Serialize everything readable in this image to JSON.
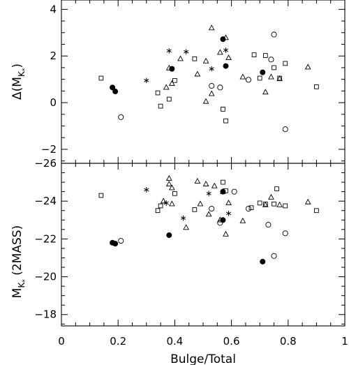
{
  "chart_data": [
    {
      "id": "top",
      "type": "scatter",
      "ylabel_main": "Δ(M",
      "ylabel_sub": "K",
      "ylabel_subsub": "*",
      "ylabel_close": ")",
      "xlim": [
        0,
        1
      ],
      "ylim": [
        -2.6,
        4.4
      ],
      "x_ticks": [
        0,
        0.2,
        0.4,
        0.6,
        0.8,
        1
      ],
      "y_ticks": [
        -2,
        0,
        2,
        4
      ],
      "y_tick_labels": [
        "−2",
        "0",
        "2",
        "4"
      ],
      "grid": false,
      "markers": {
        "filled_circle": [
          [
            0.18,
            0.65
          ],
          [
            0.19,
            0.48
          ],
          [
            0.39,
            1.45
          ],
          [
            0.57,
            2.72
          ],
          [
            0.58,
            1.57
          ],
          [
            0.71,
            1.3
          ]
        ],
        "open_circle": [
          [
            0.21,
            -0.62
          ],
          [
            0.53,
            0.72
          ],
          [
            0.56,
            0.65
          ],
          [
            0.66,
            0.98
          ],
          [
            0.74,
            1.85
          ],
          [
            0.75,
            2.92
          ],
          [
            0.79,
            -1.14
          ]
        ],
        "triangle": [
          [
            0.37,
            0.65
          ],
          [
            0.38,
            1.48
          ],
          [
            0.39,
            0.82
          ],
          [
            0.42,
            1.88
          ],
          [
            0.48,
            1.22
          ],
          [
            0.51,
            0.05
          ],
          [
            0.51,
            1.78
          ],
          [
            0.53,
            3.2
          ],
          [
            0.53,
            0.38
          ],
          [
            0.56,
            2.15
          ],
          [
            0.58,
            2.78
          ],
          [
            0.59,
            1.92
          ],
          [
            0.64,
            1.1
          ],
          [
            0.72,
            0.45
          ],
          [
            0.74,
            1.1
          ],
          [
            0.77,
            1.02
          ],
          [
            0.87,
            1.52
          ]
        ],
        "square": [
          [
            0.14,
            1.05
          ],
          [
            0.34,
            0.42
          ],
          [
            0.35,
            -0.15
          ],
          [
            0.38,
            0.15
          ],
          [
            0.4,
            0.95
          ],
          [
            0.47,
            1.88
          ],
          [
            0.57,
            -0.28
          ],
          [
            0.58,
            -0.78
          ],
          [
            0.68,
            2.05
          ],
          [
            0.7,
            1.05
          ],
          [
            0.72,
            2.02
          ],
          [
            0.75,
            1.5
          ],
          [
            0.77,
            1.05
          ],
          [
            0.79,
            1.68
          ],
          [
            0.9,
            0.68
          ]
        ],
        "asterisk": [
          [
            0.3,
            0.95
          ],
          [
            0.38,
            2.22
          ],
          [
            0.44,
            2.18
          ],
          [
            0.53,
            1.45
          ],
          [
            0.58,
            2.25
          ]
        ]
      }
    },
    {
      "id": "bottom",
      "type": "scatter",
      "ylabel_main": "M",
      "ylabel_sub": "K",
      "ylabel_subsub": "*",
      "ylabel_rest": " (2MASS)",
      "xlabel": "Bulge/Total",
      "xlim": [
        0,
        1
      ],
      "ylim": [
        -17.4,
        -26
      ],
      "x_ticks": [
        0,
        0.2,
        0.4,
        0.6,
        0.8,
        1
      ],
      "x_tick_labels": [
        "0",
        "0.2",
        "0.4",
        "0.6",
        "0.8",
        "1"
      ],
      "y_ticks": [
        -18,
        -20,
        -22,
        -24,
        -26
      ],
      "y_tick_labels": [
        "−18",
        "−20",
        "−22",
        "−24",
        "−26"
      ],
      "grid": false,
      "markers": {
        "filled_circle": [
          [
            0.18,
            -21.8
          ],
          [
            0.19,
            -21.75
          ],
          [
            0.38,
            -22.2
          ],
          [
            0.57,
            -23.0
          ],
          [
            0.57,
            -24.5
          ],
          [
            0.71,
            -20.8
          ]
        ],
        "open_circle": [
          [
            0.21,
            -21.9
          ],
          [
            0.53,
            -23.6
          ],
          [
            0.56,
            -22.85
          ],
          [
            0.61,
            -24.5
          ],
          [
            0.66,
            -23.6
          ],
          [
            0.73,
            -22.75
          ],
          [
            0.75,
            -21.1
          ],
          [
            0.79,
            -22.3
          ]
        ],
        "triangle": [
          [
            0.36,
            -24.0
          ],
          [
            0.38,
            -25.2
          ],
          [
            0.38,
            -24.9
          ],
          [
            0.39,
            -24.7
          ],
          [
            0.39,
            -23.85
          ],
          [
            0.44,
            -22.6
          ],
          [
            0.48,
            -25.05
          ],
          [
            0.49,
            -23.85
          ],
          [
            0.51,
            -24.9
          ],
          [
            0.52,
            -23.3
          ],
          [
            0.54,
            -24.8
          ],
          [
            0.56,
            -23.0
          ],
          [
            0.57,
            -24.5
          ],
          [
            0.58,
            -22.25
          ],
          [
            0.59,
            -23.9
          ],
          [
            0.64,
            -22.95
          ],
          [
            0.72,
            -23.8
          ],
          [
            0.74,
            -24.2
          ],
          [
            0.77,
            -23.8
          ],
          [
            0.87,
            -23.95
          ]
        ],
        "square": [
          [
            0.14,
            -24.3
          ],
          [
            0.34,
            -23.5
          ],
          [
            0.35,
            -23.75
          ],
          [
            0.4,
            -24.4
          ],
          [
            0.47,
            -23.55
          ],
          [
            0.57,
            -25.0
          ],
          [
            0.58,
            -24.55
          ],
          [
            0.67,
            -23.65
          ],
          [
            0.7,
            -23.9
          ],
          [
            0.72,
            -23.85
          ],
          [
            0.75,
            -23.85
          ],
          [
            0.76,
            -24.65
          ],
          [
            0.79,
            -23.75
          ],
          [
            0.9,
            -23.5
          ]
        ],
        "asterisk": [
          [
            0.3,
            -24.6
          ],
          [
            0.37,
            -23.9
          ],
          [
            0.43,
            -23.1
          ],
          [
            0.52,
            -24.4
          ],
          [
            0.59,
            -23.35
          ]
        ]
      }
    }
  ]
}
